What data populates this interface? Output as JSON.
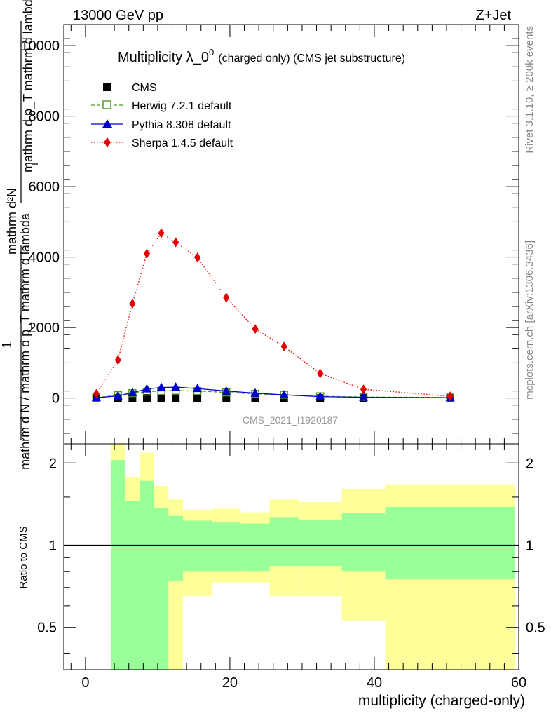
{
  "header": {
    "left": "13000 GeV pp",
    "right": "Z+Jet"
  },
  "side_labels": {
    "rivet": "Rivet 3.1.10, ≥ 200k events",
    "mcplots": "mcplots.cern.ch [arXiv:1306.3436]"
  },
  "watermark": "CMS_2021_I1920187",
  "legend": {
    "cms": "CMS",
    "herwig": "Herwig 7.2.1 default",
    "pythia": "Pythia 8.308 default",
    "sherpa": "Sherpa 1.4.5 default"
  },
  "colors": {
    "cms": "#000000",
    "herwig": "#4c9a1a",
    "pythia": "#0000cc",
    "sherpa": "#e00000",
    "band_inner": "#99ff99",
    "band_outer": "#ffff99"
  },
  "chart_data": [
    {
      "type": "line",
      "title": "Multiplicity λ_0",
      "title_sup": "0",
      "subtitle": "(charged only) (CMS jet substructure)",
      "ylabel_numerator": "1",
      "ylabel_denominator": "mathrm d N / mathrm d p_T mathrm d lambda",
      "ylabel_top": "mathrm d²N",
      "ylabel_bottom": "mathrm d p_T mathrm d lambda",
      "ylabel_sub": "T",
      "xlim": [
        -3,
        60
      ],
      "ylim": [
        -1300,
        10600
      ],
      "yticks": [
        0,
        2000,
        4000,
        6000,
        8000,
        10000
      ],
      "ytick_labels": [
        "0",
        "2000",
        "4000",
        "6000",
        "8000",
        "10000"
      ],
      "x": [
        1.5,
        4.5,
        6.5,
        8.5,
        10.5,
        12.5,
        15.5,
        19.5,
        23.5,
        27.5,
        32.5,
        38.5,
        50.5
      ],
      "series": [
        {
          "name": "CMS",
          "values": [
            0,
            0,
            0,
            0,
            0,
            0,
            0,
            0,
            0,
            0,
            0,
            0,
            0
          ]
        },
        {
          "name": "Herwig 7.2.1 default",
          "values": [
            10,
            80,
            140,
            180,
            200,
            210,
            200,
            160,
            120,
            90,
            50,
            30,
            15
          ]
        },
        {
          "name": "Pythia 8.308 default",
          "values": [
            10,
            60,
            150,
            260,
            300,
            310,
            270,
            200,
            140,
            90,
            40,
            20,
            10
          ]
        },
        {
          "name": "Sherpa 1.4.5 default",
          "values": [
            120,
            1080,
            2680,
            4100,
            4680,
            4420,
            3990,
            2850,
            1960,
            1460,
            700,
            250,
            50
          ]
        }
      ]
    },
    {
      "type": "area",
      "xlabel": "multiplicity (charged-only)",
      "ylabel": "Ratio to CMS",
      "xlim": [
        -3,
        60
      ],
      "ylim": [
        0.35,
        2.35
      ],
      "xticks": [
        0,
        20,
        40,
        60
      ],
      "xtick_labels": [
        "0",
        "20",
        "40",
        "60"
      ],
      "yticks": [
        0.5,
        1,
        2
      ],
      "ytick_labels": [
        "0.5",
        "1",
        "2"
      ],
      "bin_edges": [
        3.5,
        5.5,
        7.5,
        9.5,
        11.5,
        13.5,
        17.5,
        21.5,
        25.5,
        29.5,
        35.5,
        41.5,
        59.5
      ],
      "band_inner_lo": [
        0.35,
        0.35,
        0.35,
        0.35,
        0.74,
        0.8,
        0.8,
        0.8,
        0.84,
        0.84,
        0.8,
        0.75
      ],
      "band_inner_hi": [
        2.05,
        1.45,
        1.72,
        1.37,
        1.28,
        1.23,
        1.21,
        1.2,
        1.26,
        1.24,
        1.31,
        1.38
      ],
      "band_outer_lo": [
        0.35,
        0.68,
        0.35,
        0.35,
        0.35,
        0.65,
        0.73,
        0.73,
        0.65,
        0.65,
        0.53,
        0.35
      ],
      "band_outer_hi": [
        2.35,
        1.78,
        2.18,
        1.65,
        1.47,
        1.35,
        1.36,
        1.32,
        1.47,
        1.44,
        1.61,
        1.67
      ]
    }
  ]
}
